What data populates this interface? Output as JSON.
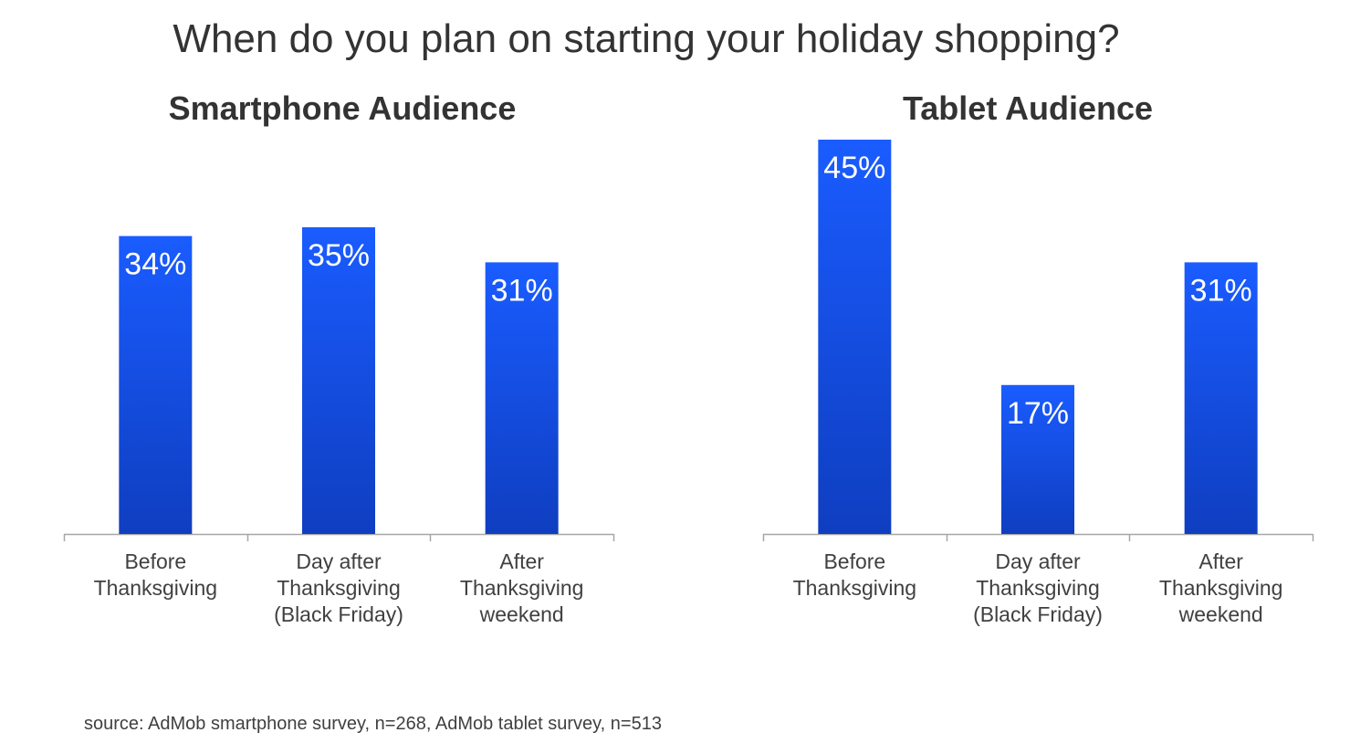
{
  "title": "When do you plan on starting your holiday shopping?",
  "source": "source: AdMob smartphone survey, n=268, AdMob tablet survey, n=513",
  "colors": {
    "bar_top": "#1a5cff",
    "bar_bottom": "#0f3ec0",
    "axis": "#a6a6a6",
    "label": "#404040"
  },
  "chart_data": [
    {
      "type": "bar",
      "title": "Smartphone Audience",
      "categories": [
        [
          "Before",
          "Thanksgiving"
        ],
        [
          "Day after",
          "Thanksgiving",
          "(Black Friday)"
        ],
        [
          "After",
          "Thanksgiving",
          "weekend"
        ]
      ],
      "values": [
        34,
        35,
        31
      ],
      "data_labels": [
        "34%",
        "35%",
        "31%"
      ],
      "ylim": [
        0,
        45
      ],
      "grid": false,
      "xlabel": "",
      "ylabel": ""
    },
    {
      "type": "bar",
      "title": "Tablet Audience",
      "categories": [
        [
          "Before",
          "Thanksgiving"
        ],
        [
          "Day after",
          "Thanksgiving",
          "(Black Friday)"
        ],
        [
          "After",
          "Thanksgiving",
          "weekend"
        ]
      ],
      "values": [
        45,
        17,
        31
      ],
      "data_labels": [
        "45%",
        "17%",
        "31%"
      ],
      "ylim": [
        0,
        45
      ],
      "grid": false,
      "xlabel": "",
      "ylabel": ""
    }
  ]
}
